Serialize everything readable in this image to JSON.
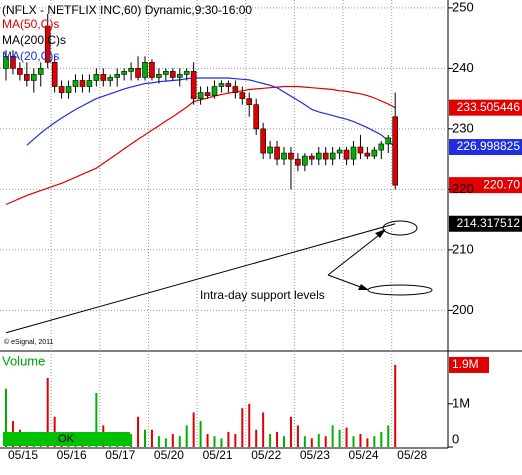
{
  "chart_data": [
    {
      "type": "candlestick",
      "title": "(NFLX - NETFLIX INC,60) Dynamic,9:30-16:00",
      "copyright": "© eSignal, 2011",
      "annotation": "Intra-day support levels",
      "up_color": "#00b000",
      "down_color": "#e00000",
      "ylim": [
        193.45,
        251.3
      ],
      "yticks": [
        200,
        210,
        220,
        230,
        240,
        250
      ],
      "grid": true,
      "categories": [
        "05/15",
        null,
        null,
        null,
        null,
        null,
        null,
        "05/16",
        null,
        null,
        null,
        null,
        null,
        null,
        "05/17",
        null,
        null,
        null,
        null,
        null,
        null,
        "05/20",
        null,
        null,
        null,
        null,
        null,
        null,
        "05/21",
        null,
        null,
        null,
        null,
        null,
        null,
        "05/22",
        null,
        null,
        null,
        null,
        null,
        null,
        "05/23",
        null,
        null,
        null,
        null,
        null,
        null,
        "05/24",
        null,
        null,
        null,
        null,
        null,
        null,
        "05/28"
      ],
      "open": [
        240,
        242,
        240,
        239,
        238,
        239,
        247,
        241,
        237,
        236,
        237,
        238,
        237,
        238,
        239,
        238,
        238.5,
        239,
        239.5,
        240,
        238.5,
        241,
        238.5,
        239,
        239.5,
        238.5,
        239,
        239.5,
        235,
        236,
        235.5,
        237,
        237.5,
        237,
        236,
        235,
        234,
        230,
        226,
        227,
        225,
        226,
        225,
        224,
        225.5,
        225,
        226,
        225,
        226,
        226.5,
        225,
        227,
        226,
        225.5,
        226.5,
        227.5,
        232
      ],
      "high": [
        243,
        243,
        241,
        241,
        240,
        241,
        249,
        242,
        238,
        238,
        239,
        239,
        239,
        240,
        240,
        239,
        240,
        240,
        241,
        242,
        242,
        241.5,
        240,
        240,
        240,
        240,
        240,
        241,
        237,
        237,
        238,
        238,
        238,
        238,
        237,
        236,
        235,
        231,
        228,
        228,
        227,
        227,
        226,
        226,
        226,
        227,
        227,
        227,
        227,
        227,
        228,
        229,
        227,
        227,
        228,
        229,
        236
      ],
      "low": [
        238,
        239,
        238,
        237,
        236,
        237,
        240,
        236,
        235,
        235,
        236,
        236,
        236,
        237,
        237,
        237,
        237,
        238,
        238,
        238,
        238,
        238,
        237.5,
        238,
        238,
        237,
        238,
        234,
        234,
        235,
        235,
        236,
        236,
        235,
        234,
        232,
        229,
        225,
        225,
        224,
        224,
        220,
        223,
        223,
        224,
        224,
        224,
        224,
        225,
        224,
        224,
        225,
        225,
        225,
        225,
        226,
        220
      ],
      "close": [
        242,
        240,
        239,
        238,
        239,
        240,
        241,
        237,
        236,
        237,
        238,
        237,
        238,
        239,
        238,
        238.5,
        239,
        239.5,
        240,
        238.5,
        241,
        238.5,
        239,
        239.5,
        238.5,
        239,
        239.5,
        235,
        236,
        235.5,
        237,
        237.5,
        237,
        236,
        235,
        234,
        230,
        226,
        227,
        225,
        226,
        225,
        224,
        225.5,
        225,
        226,
        225,
        226,
        226.5,
        225,
        227,
        226,
        225.5,
        226.5,
        227.5,
        228.5,
        220.7
      ],
      "value_labels": [
        null,
        null,
        null,
        null,
        null,
        null,
        null,
        null,
        null,
        null,
        null,
        null,
        null,
        null,
        null,
        null,
        null,
        null,
        null,
        null,
        null,
        null,
        null,
        null,
        null,
        null,
        null,
        null,
        null,
        null,
        null,
        null,
        null,
        null,
        null,
        null,
        null,
        null,
        null,
        null,
        null,
        null,
        null,
        null,
        null,
        null,
        null,
        null,
        null,
        null,
        null,
        null,
        null,
        null,
        null,
        null,
        "220.70"
      ],
      "series": [
        {
          "name": "MA(50,C)s",
          "color": "#e00000",
          "values": [
            217.5,
            218,
            218.5,
            219,
            219.4,
            219.8,
            220.2,
            220.6,
            221,
            221.5,
            222,
            222.5,
            223,
            223.5,
            224.3,
            225.1,
            225.9,
            226.7,
            227.5,
            228.3,
            229,
            229.8,
            230.5,
            231.3,
            232,
            232.8,
            233.6,
            234.5,
            234.8,
            235.1,
            235.4,
            235.7,
            235.9,
            236.1,
            236.3,
            236.5,
            236.6,
            236.7,
            236.8,
            236.9,
            237,
            237,
            237,
            236.9,
            236.8,
            236.7,
            236.6,
            236.5,
            236.3,
            236.2,
            236,
            235.8,
            235.5,
            235.1,
            234.6,
            234.1,
            233.505446
          ]
        },
        {
          "name": "MA(200,C)s",
          "color": "#000000",
          "values": [
            null,
            null,
            null,
            null,
            null,
            null,
            null,
            null,
            null,
            null,
            null,
            null,
            null,
            null,
            null,
            null,
            null,
            null,
            null,
            null,
            null,
            null,
            null,
            null,
            null,
            null,
            null,
            null,
            null,
            null,
            null,
            null,
            null,
            null,
            null,
            null,
            null,
            null,
            null,
            null,
            null,
            null,
            null,
            null,
            null,
            null,
            null,
            null,
            null,
            null,
            null,
            null,
            null,
            null,
            null,
            null,
            null
          ]
        },
        {
          "name": "MA(20,C)s",
          "color": "#1f2fe0",
          "values": [
            null,
            null,
            null,
            227.3,
            228.3,
            229.3,
            230.2,
            231,
            231.8,
            232.5,
            233.2,
            233.8,
            234.4,
            235,
            235.4,
            235.8,
            236.2,
            236.6,
            236.9,
            237.2,
            237.5,
            237.6,
            237.8,
            237.9,
            238,
            238.1,
            238.3,
            238.4,
            238.4,
            238.4,
            238.4,
            238.4,
            238.4,
            238.3,
            238.2,
            238.1,
            237.8,
            237.5,
            237.2,
            236.8,
            236.1,
            235.4,
            234.7,
            234,
            233.2,
            232.8,
            232.5,
            232.2,
            231.9,
            231.6,
            231.2,
            230.7,
            230.2,
            229.6,
            229,
            228,
            226.998825
          ]
        }
      ],
      "trendline": {
        "color": "#000000",
        "values": [
          196.3,
          214.317512
        ]
      }
    },
    {
      "type": "bar",
      "title": "Volume",
      "status_text": "OK",
      "up_color": "#00b000",
      "down_color": "#e00000",
      "ylim": [
        0,
        2200000
      ],
      "yticks": [
        0,
        {
          "value": 1000000,
          "label": "1M"
        }
      ],
      "values": [
        1350000,
        600000,
        400000,
        300000,
        250000,
        350000,
        1600000,
        700000,
        300000,
        250000,
        200000,
        300000,
        250000,
        1250000,
        500000,
        300000,
        250000,
        200000,
        300000,
        700000,
        400000,
        400000,
        250000,
        200000,
        300000,
        250000,
        500000,
        800000,
        600000,
        300000,
        250000,
        200000,
        350000,
        300000,
        900000,
        1000000,
        400000,
        800000,
        300000,
        350000,
        250000,
        700000,
        500000,
        250000,
        200000,
        300000,
        250000,
        500000,
        400000,
        450000,
        250000,
        300000,
        200000,
        250000,
        350000,
        500000,
        1900000
      ],
      "value_labels": [
        null,
        null,
        null,
        null,
        null,
        null,
        null,
        null,
        null,
        null,
        null,
        null,
        null,
        null,
        null,
        null,
        null,
        null,
        null,
        null,
        null,
        null,
        null,
        null,
        null,
        null,
        null,
        null,
        null,
        null,
        null,
        null,
        null,
        null,
        null,
        null,
        null,
        null,
        null,
        null,
        null,
        null,
        null,
        null,
        null,
        null,
        null,
        null,
        null,
        null,
        null,
        null,
        null,
        null,
        null,
        null,
        "1.9M"
      ]
    }
  ]
}
